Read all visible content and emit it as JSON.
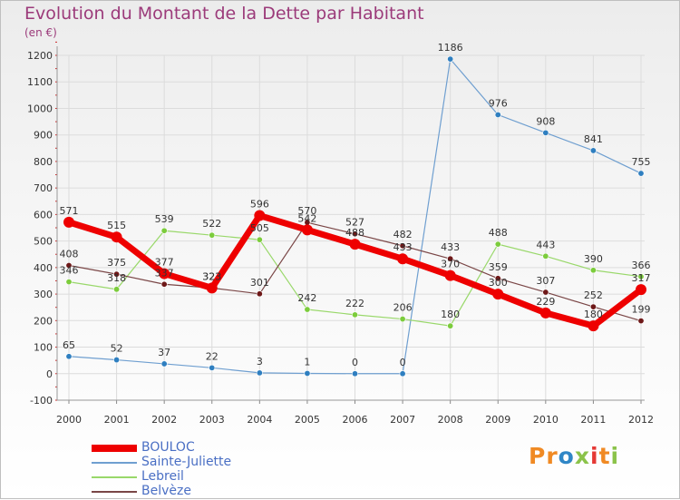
{
  "header": {
    "title": "Evolution du Montant de la Dette par Habitant",
    "unit": "(en €)"
  },
  "logo": {
    "text": "Proxiti",
    "letters": [
      {
        "ch": "P",
        "color": "#f08a24"
      },
      {
        "ch": "r",
        "color": "#f08a24"
      },
      {
        "ch": "o",
        "color": "#2f86c6"
      },
      {
        "ch": "x",
        "color": "#8bc34a"
      },
      {
        "ch": "i",
        "color": "#e53935"
      },
      {
        "ch": "t",
        "color": "#f08a24"
      },
      {
        "ch": "i",
        "color": "#8bc34a"
      }
    ]
  },
  "chart_data": {
    "type": "line",
    "title": "Evolution du Montant de la Dette par Habitant",
    "ylabel": "(en €)",
    "x": [
      "2000",
      "2001",
      "2002",
      "2003",
      "2004",
      "2005",
      "2006",
      "2007",
      "2008",
      "2009",
      "2010",
      "2011",
      "2012"
    ],
    "ylim": [
      -100,
      1200
    ],
    "yticks": [
      -100,
      0,
      100,
      200,
      300,
      400,
      500,
      600,
      700,
      800,
      900,
      1000,
      1100,
      1200
    ],
    "grid": true,
    "legend_position": "bottom-left",
    "series": [
      {
        "name": "BOULOC",
        "color": "#ee0000",
        "width": 7,
        "marker_radius": 6,
        "label_color": "#333333",
        "values": [
          571,
          515,
          377,
          323,
          596,
          542,
          488,
          433,
          370,
          300,
          229,
          180,
          317
        ]
      },
      {
        "name": "Sainte-Juliette",
        "color": "#6f9fd0",
        "width": 1.2,
        "marker_radius": 3.2,
        "marker_fill": "#2f7fc0",
        "label_color": "#333333",
        "values": [
          65,
          52,
          37,
          22,
          3,
          1,
          0,
          0,
          1186,
          976,
          908,
          841,
          755
        ]
      },
      {
        "name": "Lebreil",
        "color": "#99d86a",
        "width": 1.2,
        "marker_radius": 3.2,
        "marker_fill": "#7ccc3c",
        "label_color": "#333333",
        "values": [
          346,
          318,
          539,
          522,
          505,
          242,
          222,
          206,
          180,
          488,
          443,
          390,
          366
        ]
      },
      {
        "name": "Belvèze",
        "color": "#7a4646",
        "width": 1.2,
        "marker_radius": 3.2,
        "marker_fill": "#6e1818",
        "label_color": "#333333",
        "values": [
          408,
          375,
          337,
          323,
          301,
          570,
          527,
          482,
          433,
          359,
          307,
          252,
          199
        ]
      }
    ]
  }
}
